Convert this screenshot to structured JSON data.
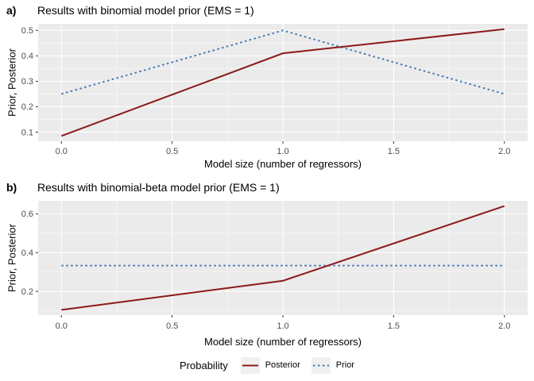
{
  "colors": {
    "panel_bg": "#EBEBEB",
    "grid_major": "#FFFFFF",
    "grid_minor": "#F6F6F6",
    "tick_mark": "#333333",
    "tick_label": "#4D4D4D",
    "axis_title": "#000000",
    "posterior": "#8B1A1A",
    "prior": "#4678B4",
    "legend_key_bg": "#F0F0F0"
  },
  "legend": {
    "title": "Probability",
    "items": [
      {
        "label": "Posterior",
        "style": "solid",
        "color": "#8B1A1A"
      },
      {
        "label": "Prior",
        "style": "dashed",
        "color": "#4678B4"
      }
    ]
  },
  "chart_data": [
    {
      "type": "line",
      "panel": "a",
      "tag": "a)",
      "title": "Results with binomial model prior (EMS = 1)",
      "xlabel": "Model size (number of regressors)",
      "ylabel": "Prior, Posterior",
      "x": [
        0,
        1,
        2
      ],
      "series": [
        {
          "name": "Posterior",
          "values": [
            0.085,
            0.41,
            0.505
          ],
          "style": "solid",
          "color": "#8B1A1A"
        },
        {
          "name": "Prior",
          "values": [
            0.25,
            0.5,
            0.25
          ],
          "style": "dashed",
          "color": "#4678B4"
        }
      ],
      "x_ticks": {
        "values": [
          0.0,
          0.5,
          1.0,
          1.5,
          2.0
        ],
        "labels": [
          "0.0",
          "0.5",
          "1.0",
          "1.5",
          "2.0"
        ]
      },
      "y_ticks": {
        "values": [
          0.1,
          0.2,
          0.3,
          0.4,
          0.5
        ],
        "labels": [
          "0.1",
          "0.2",
          "0.3",
          "0.4",
          "0.5"
        ]
      },
      "xlim": [
        -0.105,
        2.105
      ],
      "ylim": [
        0.064,
        0.526
      ],
      "grid": true,
      "legend_position": "bottom"
    },
    {
      "type": "line",
      "panel": "b",
      "tag": "b)",
      "title": "Results with binomial-beta model prior (EMS = 1)",
      "xlabel": "Model size (number of regressors)",
      "ylabel": "Prior, Posterior",
      "x": [
        0,
        1,
        2
      ],
      "series": [
        {
          "name": "Posterior",
          "values": [
            0.105,
            0.255,
            0.64
          ],
          "style": "solid",
          "color": "#8B1A1A"
        },
        {
          "name": "Prior",
          "values": [
            0.333,
            0.333,
            0.333
          ],
          "style": "dashed",
          "color": "#4678B4"
        }
      ],
      "x_ticks": {
        "values": [
          0.0,
          0.5,
          1.0,
          1.5,
          2.0
        ],
        "labels": [
          "0.0",
          "0.5",
          "1.0",
          "1.5",
          "2.0"
        ]
      },
      "y_ticks": {
        "values": [
          0.2,
          0.4,
          0.6
        ],
        "labels": [
          "0.2",
          "0.4",
          "0.6"
        ]
      },
      "xlim": [
        -0.105,
        2.105
      ],
      "ylim": [
        0.078,
        0.667
      ],
      "grid": true,
      "legend_position": "bottom"
    }
  ]
}
